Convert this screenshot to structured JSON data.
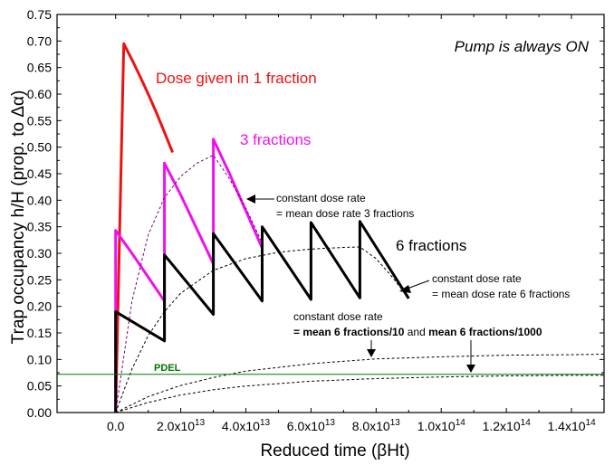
{
  "chart_data": {
    "type": "line",
    "title": "",
    "xlabel": "Reduced time (βHt)",
    "ylabel": "Trap occupancy h/H (prop. to Δα)",
    "xlim": [
      -18000000000000.0,
      150000000000000.0
    ],
    "ylim": [
      0,
      0.75
    ],
    "grid": false,
    "y_ticks": [
      "0.00",
      "0.05",
      "0.10",
      "0.15",
      "0.20",
      "0.25",
      "0.30",
      "0.35",
      "0.40",
      "0.45",
      "0.50",
      "0.55",
      "0.60",
      "0.65",
      "0.70",
      "0.75"
    ],
    "x_ticks": [
      {
        "value": 0,
        "mantissa": "0.0",
        "exp": ""
      },
      {
        "value": 20000000000000.0,
        "mantissa": "2.0x10",
        "exp": "13"
      },
      {
        "value": 40000000000000.0,
        "mantissa": "4.0x10",
        "exp": "13"
      },
      {
        "value": 60000000000000.0,
        "mantissa": "6.0x10",
        "exp": "13"
      },
      {
        "value": 80000000000000.0,
        "mantissa": "8.0x10",
        "exp": "13"
      },
      {
        "value": 100000000000000.0,
        "mantissa": "1.0x10",
        "exp": "14"
      },
      {
        "value": 120000000000000.0,
        "mantissa": "1.2x10",
        "exp": "14"
      },
      {
        "value": 140000000000000.0,
        "mantissa": "1.4x10",
        "exp": "14"
      }
    ],
    "annotations": {
      "pump": "Pump is always ON",
      "dose1": "Dose given in 1 fraction",
      "frac3": "3 fractions",
      "frac6": "6 fractions",
      "const3_line1": "constant dose rate",
      "const3_line2": "= mean dose rate 3 fractions",
      "const6_line1": "constant dose rate",
      "const6_line2": "= mean dose rate 6 fractions",
      "const_low_line1": "constant dose rate",
      "const_low_bold1": "= mean 6 fractions/10",
      "const_low_mid": " and ",
      "const_low_bold2": "mean 6 fractions/1000",
      "pdel": "PDEL"
    },
    "series": [
      {
        "name": "Dose given in 1 fraction",
        "color": "#ee1111",
        "style": "solid",
        "width": 3,
        "x": [
          0,
          2500000000000.0,
          5000000000000.0,
          7500000000000.0,
          10000000000000.0,
          12500000000000.0,
          15000000000000.0,
          17500000000000.0
        ],
        "y": [
          0,
          0.695,
          0.665,
          0.633,
          0.6,
          0.565,
          0.528,
          0.49
        ]
      },
      {
        "name": "3 fractions",
        "color": "#ee11ee",
        "style": "solid",
        "width": 3,
        "x": [
          0,
          0,
          5000000000000.0,
          10000000000000.0,
          15000000000000.0,
          15000000000000.0,
          20000000000000.0,
          25000000000000.0,
          30000000000000.0,
          30000000000000.0,
          35000000000000.0,
          40000000000000.0,
          45000000000000.0
        ],
        "y": [
          0,
          0.343,
          0.3,
          0.255,
          0.21,
          0.47,
          0.41,
          0.345,
          0.28,
          0.515,
          0.45,
          0.38,
          0.31
        ]
      },
      {
        "name": "6 fractions",
        "color": "#000000",
        "style": "solid",
        "width": 3,
        "x": [
          0,
          0,
          15000000000000.0,
          15000000000000.0,
          30000000000000.0,
          30000000000000.0,
          45000000000000.0,
          45000000000000.0,
          60000000000000.0,
          60000000000000.0,
          75000000000000.0,
          75000000000000.0,
          90000000000000.0
        ],
        "y": [
          0,
          0.19,
          0.135,
          0.297,
          0.185,
          0.337,
          0.21,
          0.35,
          0.213,
          0.358,
          0.216,
          0.36,
          0.215
        ]
      },
      {
        "name": "constant dose rate = mean dose rate 3 fractions",
        "color": "#770077",
        "style": "dash",
        "width": 1,
        "x": [
          0,
          5000000000000.0,
          10000000000000.0,
          15000000000000.0,
          20000000000000.0,
          25000000000000.0,
          30000000000000.0,
          35000000000000.0,
          40000000000000.0,
          45000000000000.0
        ],
        "y": [
          0,
          0.21,
          0.335,
          0.405,
          0.445,
          0.47,
          0.485,
          0.44,
          0.385,
          0.32
        ]
      },
      {
        "name": "constant dose rate = mean dose rate 6 fractions",
        "color": "#000000",
        "style": "dash",
        "width": 1,
        "x": [
          0,
          5000000000000.0,
          10000000000000.0,
          15000000000000.0,
          20000000000000.0,
          30000000000000.0,
          40000000000000.0,
          50000000000000.0,
          60000000000000.0,
          70000000000000.0,
          75000000000000.0,
          80000000000000.0,
          85000000000000.0,
          90000000000000.0
        ],
        "y": [
          0,
          0.082,
          0.145,
          0.19,
          0.225,
          0.268,
          0.29,
          0.302,
          0.308,
          0.311,
          0.312,
          0.29,
          0.255,
          0.215
        ]
      },
      {
        "name": "constant dose rate = mean 6 fractions/10",
        "color": "#000000",
        "style": "dash",
        "width": 1,
        "x": [
          0,
          10000000000000.0,
          20000000000000.0,
          30000000000000.0,
          40000000000000.0,
          60000000000000.0,
          80000000000000.0,
          100000000000000.0,
          120000000000000.0,
          140000000000000.0,
          150000000000000.0
        ],
        "y": [
          0,
          0.03,
          0.051,
          0.066,
          0.078,
          0.092,
          0.101,
          0.105,
          0.108,
          0.109,
          0.11
        ]
      },
      {
        "name": "constant dose rate = mean 6 fractions/1000",
        "color": "#000000",
        "style": "dash",
        "width": 1,
        "x": [
          0,
          10000000000000.0,
          20000000000000.0,
          30000000000000.0,
          40000000000000.0,
          60000000000000.0,
          80000000000000.0,
          100000000000000.0,
          120000000000000.0,
          140000000000000.0,
          150000000000000.0
        ],
        "y": [
          0,
          0.019,
          0.033,
          0.043,
          0.05,
          0.059,
          0.064,
          0.067,
          0.069,
          0.07,
          0.07
        ]
      },
      {
        "name": "PDEL",
        "color": "#007700",
        "style": "solid",
        "width": 1,
        "x": [
          -18000000000000.0,
          150000000000000.0
        ],
        "y": [
          0.072,
          0.072
        ]
      }
    ]
  }
}
